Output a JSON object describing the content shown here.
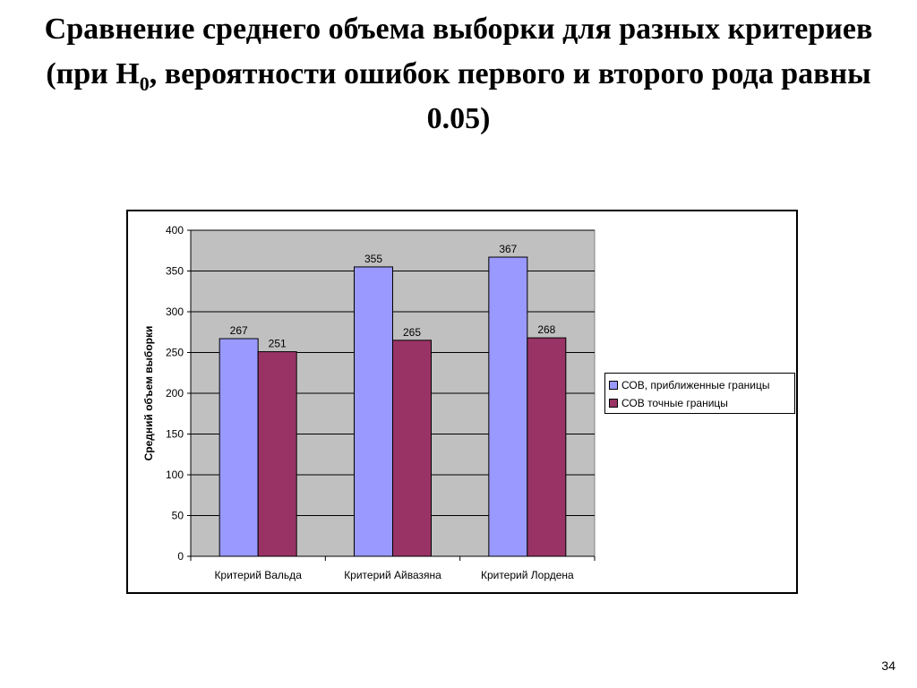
{
  "slide": {
    "title_part1": "Сравнение среднего объема выборки для разных критериев (при H",
    "title_subscript": "0",
    "title_part2": ", вероятности ошибок первого и второго рода равны 0.05)",
    "page_number": "34"
  },
  "chart_data": {
    "type": "bar",
    "title": "",
    "xlabel": "",
    "ylabel": "Средний объем выборки",
    "categories": [
      "Критерий Вальда",
      "Критерий Айвазяна",
      "Критерий Лордена"
    ],
    "series": [
      {
        "name": "СОВ, приближенные границы",
        "values": [
          267,
          355,
          367
        ],
        "color": "#9999ff"
      },
      {
        "name": "СОВ точные границы",
        "values": [
          251,
          265,
          268
        ],
        "color": "#993366"
      }
    ],
    "ylim": [
      0,
      400
    ],
    "yticks": [
      0,
      50,
      100,
      150,
      200,
      250,
      300,
      350,
      400
    ],
    "grid": true,
    "data_labels": true,
    "legend_position": "right",
    "plot_background": "#c0c0c0"
  }
}
